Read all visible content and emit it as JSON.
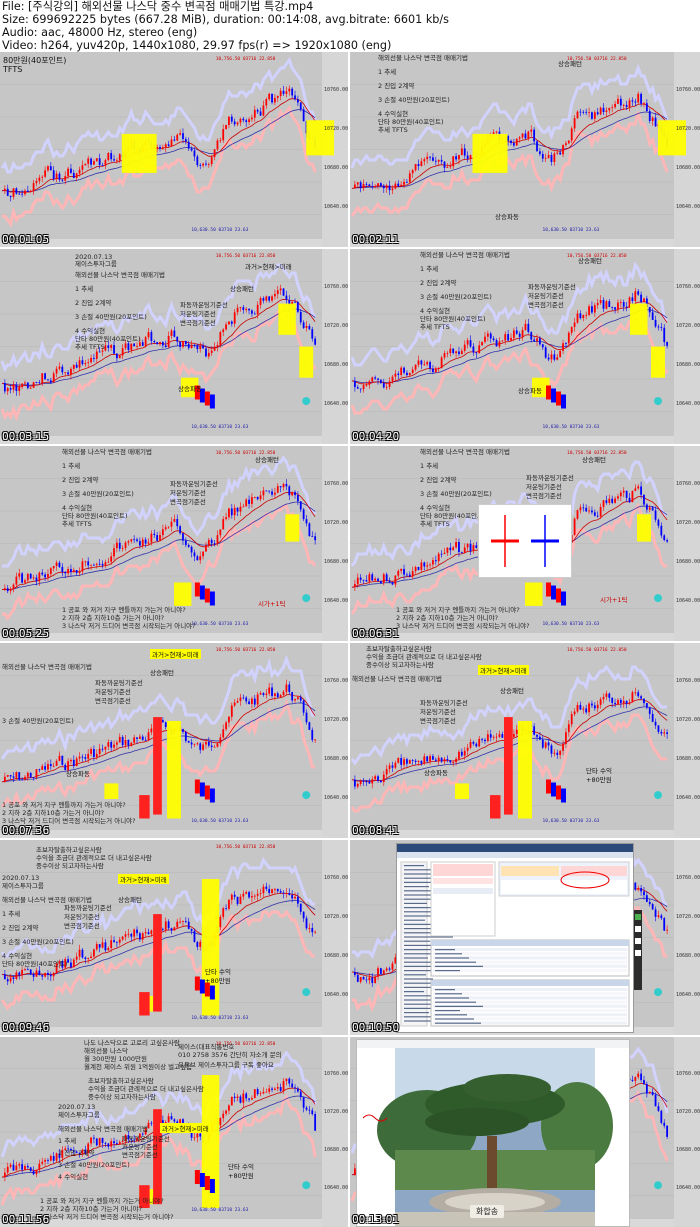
{
  "header": {
    "file": "File: [주식강의] 해외선물 나스닥 중수 변곡점 매매기법 특강.mp4",
    "size": "Size: 699692225 bytes (667.28 MiB), duration: 00:14:08, avg.bitrate: 6601 kb/s",
    "audio": "Audio: aac, 48000 Hz, stereo (eng)",
    "video": "Video: h264, yuv420p, 1440x1080, 29.97 fps(r) => 1920x1080 (eng)"
  },
  "thumbs": [
    {
      "ts": "00:01:05"
    },
    {
      "ts": "00:02:11"
    },
    {
      "ts": "00:03:15"
    },
    {
      "ts": "00:04:20"
    },
    {
      "ts": "00:05:25"
    },
    {
      "ts": "00:06:31"
    },
    {
      "ts": "00:07:36"
    },
    {
      "ts": "00:08:41"
    },
    {
      "ts": "00:09:46"
    },
    {
      "ts": "00:10:50"
    },
    {
      "ts": "00:11:56"
    },
    {
      "ts": "00:13:01"
    }
  ],
  "text": {
    "t1_label": "80만원(40포인트)",
    "t1_label2": "TFTS",
    "title": "해외선물 나스닥 변곡점 매매기법",
    "step1": "1 추세",
    "step2": "2 진입 2계약",
    "step3": "3 손절 40만원(20포인트)",
    "step4": "4 수익실현",
    "step4b": "단타 80만원(40포인트)",
    "step4c": "추세 TFTS",
    "uptrend": "상승패턴",
    "uptrend2": "상승파동",
    "date": "2020.07.13",
    "company": "제이스투자그룹",
    "callout": "과거>현재>미래",
    "lines3a": "파동까운팅기준선",
    "lines3b": "저운팅기준선",
    "lines3c": "변곡점기준선",
    "q1": "1 공포 와 저거 지구 멘틀까지 가는거 아니야?",
    "q2": "2 지하 2층 지하10층 가는거 아니야?",
    "q3": "3 나스닥 저거 드디어 변곡점 시작되는거 아니야?",
    "sign": "시가+1틱",
    "exit": "단타 수익",
    "exit2": "+80만원",
    "beg1": "초보자탈출하고싶은사람",
    "beg2": "수익을 조금더 관례적으로 더 내고싶은사람",
    "beg3": "중수이상 되고자하는사람",
    "nasdaq": "나도 나스닥으로 고로리 고싶은사람",
    "seminar1": "해외선물 나스닥",
    "seminar2": "월 300만원 1000만원",
    "seminar3": "월계천 제이스 위원 1억원이상 벌고싶음",
    "contact1": "제이스(대표직통번호",
    "contact2": "010 2758 3576 간단히 자소개 문의",
    "contact3": "유튜브 제이스투자그룹 구독 좋아요",
    "photo_caption": "화합송",
    "price_a": "10760.00",
    "price_b": "10720.00",
    "price_c": "10680.00",
    "price_d": "10640.00",
    "btm_price": "10,630.50 03710 23.63",
    "top_price": "10,756.50 03716 22.850"
  },
  "colors": {
    "chart_bg": "#c6c6c6",
    "candle_up": "#ff0000",
    "candle_dn": "#0000ff",
    "upper_band": "#d2d2ff",
    "lower_band": "#ffb6b6",
    "ma_red": "#cc0000",
    "ma_blue": "#3333aa",
    "highlight": "#ffff00",
    "marker": "#33cccc"
  }
}
